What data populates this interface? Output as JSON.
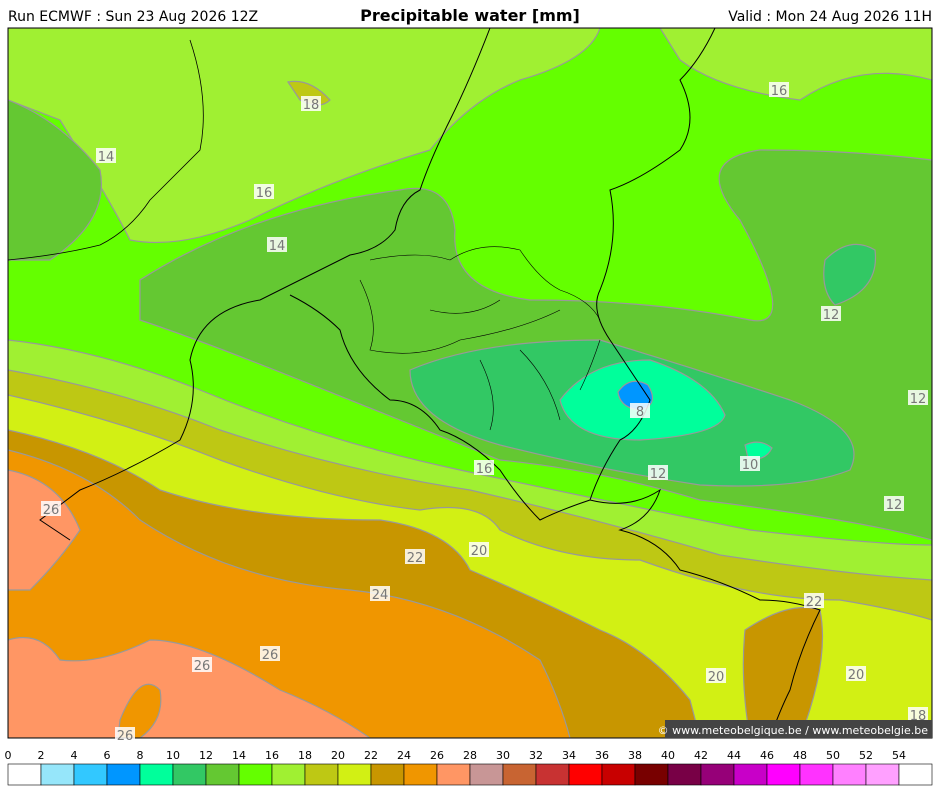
{
  "header": {
    "run": "Run ECMWF : Sun 23 Aug 2026 12Z",
    "title": "Precipitable water [mm]",
    "valid": "Valid : Mon 24 Aug 2026 11H"
  },
  "contour_labels": [
    18,
    16,
    14,
    16,
    14,
    12,
    12,
    8,
    16,
    12,
    10,
    12,
    26,
    22,
    20,
    24,
    26,
    26,
    22,
    20,
    20,
    18,
    26
  ],
  "copyright": "© www.meteobelgique.be / www.meteobelgie.be",
  "colorbar": {
    "ticks": [
      0,
      2,
      4,
      6,
      8,
      10,
      12,
      14,
      16,
      18,
      20,
      22,
      24,
      26,
      28,
      30,
      32,
      34,
      36,
      38,
      40,
      42,
      44,
      46,
      48,
      50,
      52,
      54
    ],
    "colors": [
      "#ffffff",
      "#96e6fa",
      "#32c8ff",
      "#0096ff",
      "#00ff9b",
      "#32c864",
      "#64c832",
      "#64ff00",
      "#a0f032",
      "#bec814",
      "#d2f014",
      "#c89600",
      "#f09600",
      "#ff9664",
      "#c89696",
      "#c86432",
      "#c83232",
      "#ff0000",
      "#c80000",
      "#780000",
      "#780046",
      "#960078",
      "#c800c8",
      "#ff00ff",
      "#ff32ff",
      "#ff80ff",
      "#ffa0ff",
      "#ffffff"
    ]
  }
}
